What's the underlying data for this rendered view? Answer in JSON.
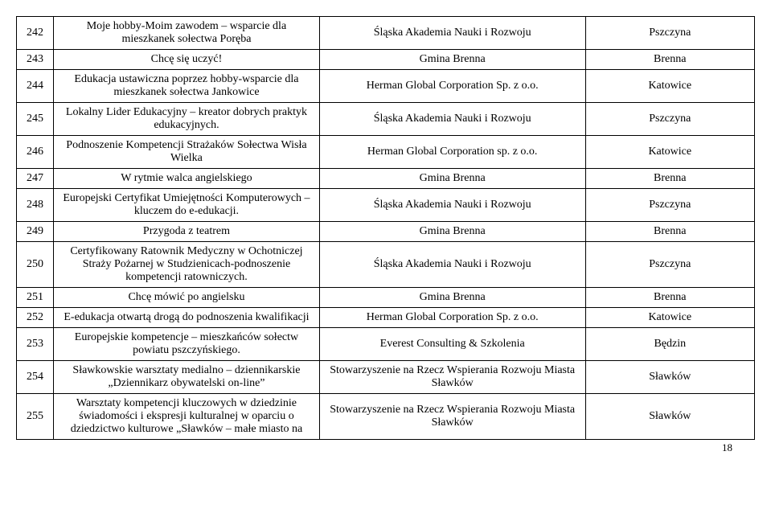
{
  "rows": [
    {
      "n": "242",
      "desc": "Moje hobby-Moim zawodem – wsparcie dla mieszkanek sołectwa Poręba",
      "org": "Śląska Akademia Nauki i Rozwoju",
      "place": "Pszczyna"
    },
    {
      "n": "243",
      "desc": "Chcę się uczyć!",
      "org": "Gmina Brenna",
      "place": "Brenna"
    },
    {
      "n": "244",
      "desc": "Edukacja ustawiczna poprzez hobby-wsparcie dla mieszkanek sołectwa Jankowice",
      "org": "Herman Global Corporation Sp. z o.o.",
      "place": "Katowice"
    },
    {
      "n": "245",
      "desc": "Lokalny Lider Edukacyjny – kreator dobrych praktyk edukacyjnych.",
      "org": "Śląska Akademia Nauki i Rozwoju",
      "place": "Pszczyna"
    },
    {
      "n": "246",
      "desc": "Podnoszenie Kompetencji Strażaków Sołectwa Wisła Wielka",
      "org": "Herman Global Corporation sp. z o.o.",
      "place": "Katowice"
    },
    {
      "n": "247",
      "desc": "W rytmie walca angielskiego",
      "org": "Gmina Brenna",
      "place": "Brenna"
    },
    {
      "n": "248",
      "desc": "Europejski Certyfikat Umiejętności Komputerowych – kluczem do e-edukacji.",
      "org": "Śląska Akademia Nauki i Rozwoju",
      "place": "Pszczyna"
    },
    {
      "n": "249",
      "desc": "Przygoda z teatrem",
      "org": "Gmina Brenna",
      "place": "Brenna"
    },
    {
      "n": "250",
      "desc": "Certyfikowany Ratownik Medyczny w Ochotniczej Straży Pożarnej w Studzienicach-podnoszenie kompetencji ratowniczych.",
      "org": "Śląska Akademia Nauki i Rozwoju",
      "place": "Pszczyna"
    },
    {
      "n": "251",
      "desc": "Chcę mówić po angielsku",
      "org": "Gmina Brenna",
      "place": "Brenna"
    },
    {
      "n": "252",
      "desc": "E-edukacja otwartą drogą do podnoszenia kwalifikacji",
      "org": "Herman Global Corporation Sp. z o.o.",
      "place": "Katowice"
    },
    {
      "n": "253",
      "desc": "Europejskie kompetencje – mieszkańców sołectw powiatu pszczyńskiego.",
      "org": "Everest Consulting & Szkolenia",
      "place": "Będzin"
    },
    {
      "n": "254",
      "desc": "Sławkowskie warsztaty medialno – dziennikarskie „Dziennikarz obywatelski on-line”",
      "org": "Stowarzyszenie na Rzecz Wspierania Rozwoju Miasta Sławków",
      "place": "Sławków"
    },
    {
      "n": "255",
      "desc": "Warsztaty kompetencji kluczowych w dziedzinie świadomości i ekspresji kulturalnej w oparciu o dziedzictwo kulturowe „Sławków – małe miasto na",
      "org": "Stowarzyszenie na Rzecz Wspierania Rozwoju Miasta Sławków",
      "place": "Sławków"
    }
  ],
  "page_number": "18"
}
